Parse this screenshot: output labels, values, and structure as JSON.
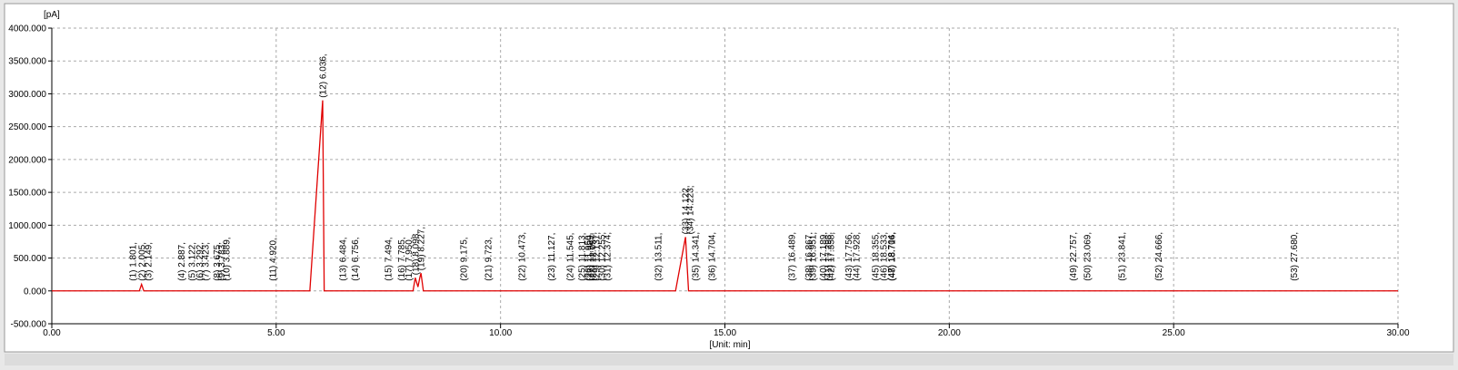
{
  "chart_data": {
    "type": "line",
    "y_unit": "[pA]",
    "x_label": "[Unit: min]",
    "xlim": [
      0,
      30
    ],
    "ylim": [
      -500,
      4000
    ],
    "xticks": [
      {
        "value": 0,
        "label": "0.00"
      },
      {
        "value": 5,
        "label": "5.00"
      },
      {
        "value": 10,
        "label": "10.00"
      },
      {
        "value": 15,
        "label": "15.00"
      },
      {
        "value": 20,
        "label": "20.00"
      },
      {
        "value": 25,
        "label": "25.00"
      },
      {
        "value": 30,
        "label": "30.00"
      }
    ],
    "yticks": [
      {
        "value": -500,
        "label": "-500.000"
      },
      {
        "value": 0,
        "label": "0.000"
      },
      {
        "value": 500,
        "label": "500.000"
      },
      {
        "value": 1000,
        "label": "1000.000"
      },
      {
        "value": 1500,
        "label": "1500.000"
      },
      {
        "value": 2000,
        "label": "2000.000"
      },
      {
        "value": 2500,
        "label": "2500.000"
      },
      {
        "value": 3000,
        "label": "3000.000"
      },
      {
        "value": 3500,
        "label": "3500.000"
      },
      {
        "value": 4000,
        "label": "4000.000"
      }
    ],
    "grid": true,
    "series": [
      {
        "color": "#e00000",
        "x": [
          0,
          1.95,
          2.0,
          2.05,
          5.75,
          6.036,
          6.07,
          8.05,
          8.1,
          8.16,
          8.2,
          8.227,
          8.28,
          13.9,
          14.122,
          14.19,
          30
        ],
        "values": [
          0,
          0,
          100,
          0,
          0,
          2900,
          0,
          0,
          200,
          60,
          200,
          270,
          0,
          0,
          820,
          0,
          0
        ]
      }
    ],
    "peaks": [
      {
        "label": "(1) 1.801,",
        "x": 1.801
      },
      {
        "label": "(2) 2.005,",
        "x": 2.005
      },
      {
        "label": "(3) 2.149,",
        "x": 2.149
      },
      {
        "label": "(4) 2.887,",
        "x": 2.887
      },
      {
        "label": "(5) 3.122,",
        "x": 3.122
      },
      {
        "label": "(6) 3.292,",
        "x": 3.292
      },
      {
        "label": "(7) 3.423,",
        "x": 3.423
      },
      {
        "label": "(8) 3.675,",
        "x": 3.675
      },
      {
        "label": "(9) 3.783,",
        "x": 3.783
      },
      {
        "label": "(10) 3.889,",
        "x": 3.889
      },
      {
        "label": "(11) 4.920,",
        "x": 4.92
      },
      {
        "label": "(12) 6.036,",
        "x": 6.036
      },
      {
        "label": "(13) 6.484,",
        "x": 6.484
      },
      {
        "label": "(14) 6.756,",
        "x": 6.756
      },
      {
        "label": "(15) 7.494,",
        "x": 7.494
      },
      {
        "label": "(16) 7.785,",
        "x": 7.785
      },
      {
        "label": "(17) 7.950,",
        "x": 7.95
      },
      {
        "label": "(18) 8.098,",
        "x": 8.098
      },
      {
        "label": "(19) 8.227,",
        "x": 8.227
      },
      {
        "label": "(20) 9.175,",
        "x": 9.175
      },
      {
        "label": "(21) 9.723,",
        "x": 9.723
      },
      {
        "label": "(22) 10.473,",
        "x": 10.473
      },
      {
        "label": "(23) 11.127,",
        "x": 11.127
      },
      {
        "label": "(24) 11.545,",
        "x": 11.545
      },
      {
        "label": "(25) 11.813,",
        "x": 11.813
      },
      {
        "label": "(26) 11.950,",
        "x": 11.95
      },
      {
        "label": "(27) 11.989,",
        "x": 11.989
      },
      {
        "label": "(28) 12.057,",
        "x": 12.057
      },
      {
        "label": "(29) 12.137,",
        "x": 12.137
      },
      {
        "label": "(30) 12.255,",
        "x": 12.255
      },
      {
        "label": "(31) 12.374,",
        "x": 12.374
      },
      {
        "label": "(32) 13.511,",
        "x": 13.511
      },
      {
        "label": "(33) 14.122,",
        "x": 14.122
      },
      {
        "label": "(34) 14.223,",
        "x": 14.223
      },
      {
        "label": "(35) 14.341,",
        "x": 14.341
      },
      {
        "label": "(36) 14.704,",
        "x": 14.704
      },
      {
        "label": "(37) 16.489,",
        "x": 16.489
      },
      {
        "label": "(38) 16.867,",
        "x": 16.867
      },
      {
        "label": "(39) 16.951,",
        "x": 16.951
      },
      {
        "label": "(40) 17.189,",
        "x": 17.189
      },
      {
        "label": "(41) 17.298,",
        "x": 17.298
      },
      {
        "label": "(42) 17.358,",
        "x": 17.358
      },
      {
        "label": "(43) 17.756,",
        "x": 17.756
      },
      {
        "label": "(44) 17.928,",
        "x": 17.928
      },
      {
        "label": "(45) 18.355,",
        "x": 18.355
      },
      {
        "label": "(46) 18.533,",
        "x": 18.533
      },
      {
        "label": "(47) 18.704,",
        "x": 18.704
      },
      {
        "label": "(48) 18.716,",
        "x": 18.716
      },
      {
        "label": "(49) 22.757,",
        "x": 22.757
      },
      {
        "label": "(50) 23.069,",
        "x": 23.069
      },
      {
        "label": "(51) 23.841,",
        "x": 23.841
      },
      {
        "label": "(52) 24.666,",
        "x": 24.666
      },
      {
        "label": "(53) 27.680,",
        "x": 27.68
      }
    ]
  }
}
